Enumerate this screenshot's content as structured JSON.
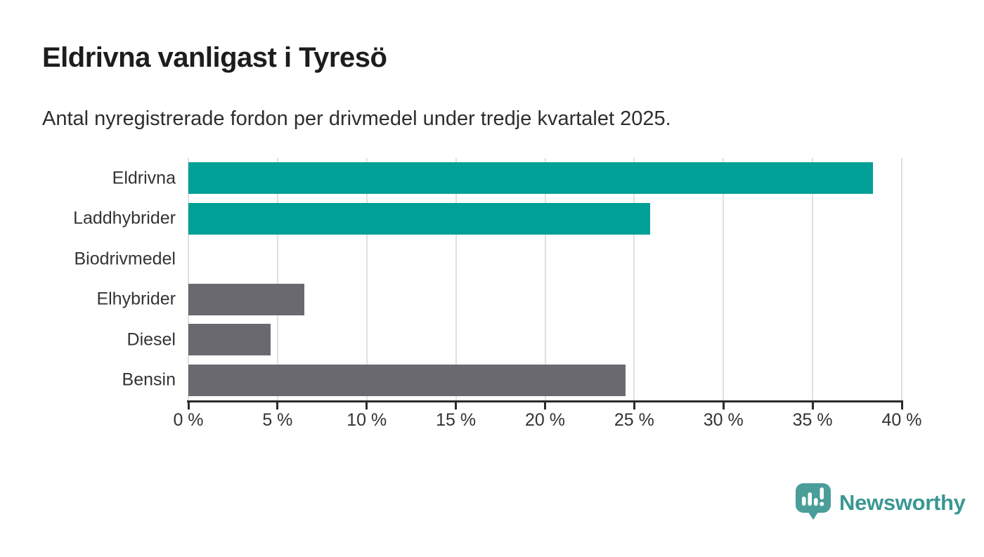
{
  "title": "Eldrivna vanligast i Tyresö",
  "subtitle": "Antal nyregistrerade fordon per drivmedel under tredje kvartalet 2025.",
  "chart_data": {
    "type": "bar",
    "orientation": "horizontal",
    "title": "Eldrivna vanligast i Tyresö",
    "subtitle": "Antal nyregistrerade fordon per drivmedel under tredje kvartalet 2025.",
    "categories": [
      "Eldrivna",
      "Laddhybrider",
      "Biodrivmedel",
      "Elhybrider",
      "Diesel",
      "Bensin"
    ],
    "values": [
      38.4,
      25.9,
      0,
      6.5,
      4.6,
      24.5
    ],
    "unit": "%",
    "bar_colors": [
      "#00a096",
      "#00a096",
      "#00a096",
      "#6b6970",
      "#6b6970",
      "#6b6970"
    ],
    "xlim": [
      0,
      40
    ],
    "x_tick_values": [
      0,
      5,
      10,
      15,
      20,
      25,
      30,
      35,
      40
    ],
    "x_tick_labels": [
      "0 %",
      "5 %",
      "10 %",
      "15 %",
      "20 %",
      "25 %",
      "30 %",
      "35 %",
      "40 %"
    ],
    "grid": "vertical",
    "legend": "none"
  },
  "branding": {
    "logo_text": "Newsworthy",
    "logo_icon": "newsworthy-bar-chart-bubble-icon",
    "logo_color": "#3a9793",
    "icon_fill": "#4a9d99"
  },
  "colors": {
    "accent_teal": "#00a096",
    "neutral_gray": "#6b6970",
    "axis": "#2b2b2b",
    "gridline": "#e0e0e0",
    "text": "#333333",
    "title_text": "#1d1d1d",
    "background": "#ffffff"
  }
}
